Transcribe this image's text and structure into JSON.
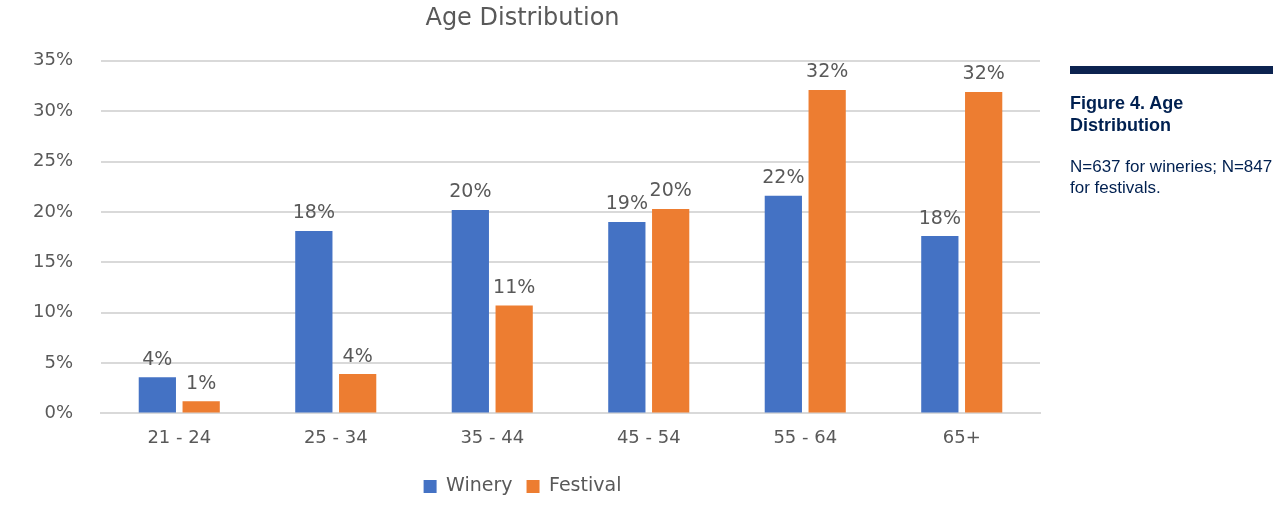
{
  "chart_data": {
    "type": "bar",
    "title": "Age Distribution",
    "categories": [
      "21 - 24",
      "25 - 34",
      "35 - 44",
      "45 - 54",
      "55 - 64",
      "65+"
    ],
    "series": [
      {
        "name": "Winery",
        "color": "#4472c4",
        "values": [
          3.6,
          18.1,
          20.2,
          19.0,
          21.6,
          17.6
        ],
        "value_labels": [
          "4%",
          "18%",
          "20%",
          "19%",
          "22%",
          "18%"
        ]
      },
      {
        "name": "Festival",
        "color": "#ed7d31",
        "values": [
          1.2,
          3.9,
          10.7,
          20.3,
          32.1,
          31.9
        ],
        "value_labels": [
          "1%",
          "4%",
          "11%",
          "20%",
          "32%",
          "32%"
        ]
      }
    ],
    "ylim": [
      0,
      35
    ],
    "yticks": [
      {
        "value": 0,
        "label": "0%"
      },
      {
        "value": 5,
        "label": "5%"
      },
      {
        "value": 10,
        "label": "10%"
      },
      {
        "value": 15,
        "label": "15%"
      },
      {
        "value": 20,
        "label": "20%"
      },
      {
        "value": 25,
        "label": "25%"
      },
      {
        "value": 30,
        "label": "30%"
      },
      {
        "value": 35,
        "label": "35%"
      }
    ],
    "grid": "y",
    "legend": "bottom",
    "annotations": [
      "Figure 4. Age Distribution",
      "N=637 for wineries; N=847 for festivals."
    ]
  }
}
